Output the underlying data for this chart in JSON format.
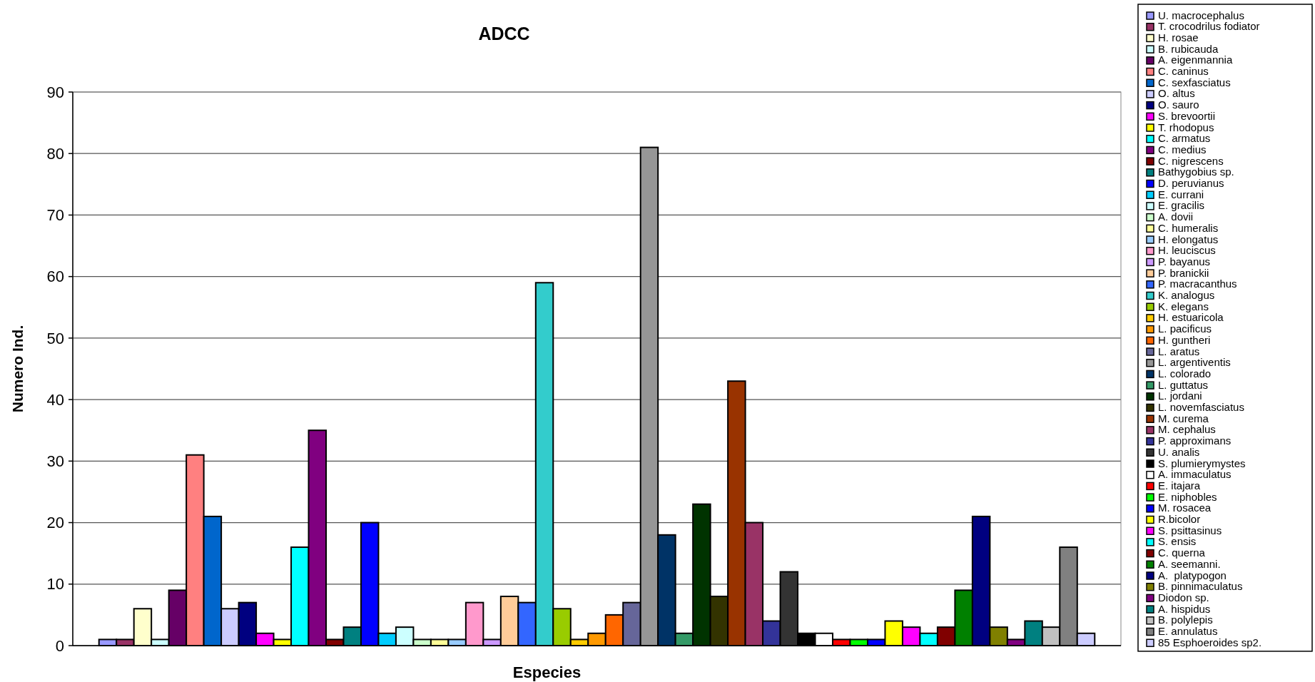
{
  "chart_data": {
    "type": "bar",
    "title": "ADCC",
    "xlabel": "Especies",
    "ylabel": "Numero Ind.",
    "categories": [
      null
    ],
    "ylim": [
      0,
      90
    ],
    "yticks": [
      0,
      10,
      20,
      30,
      40,
      50,
      60,
      70,
      80,
      90
    ],
    "grid": "y",
    "legend": "right",
    "series": [
      {
        "name": "U. macrocephalus",
        "color": "#9999ff",
        "values": [
          1
        ]
      },
      {
        "name": "T. crocodrilus fodiator",
        "color": "#993366",
        "values": [
          1
        ]
      },
      {
        "name": "H. rosae",
        "color": "#ffffcc",
        "values": [
          6
        ]
      },
      {
        "name": "B. rubicauda",
        "color": "#ccffff",
        "values": [
          1
        ]
      },
      {
        "name": "A. eigenmannia",
        "color": "#660066",
        "values": [
          9
        ]
      },
      {
        "name": "C. caninus",
        "color": "#ff8080",
        "values": [
          31
        ]
      },
      {
        "name": "C. sexfasciatus",
        "color": "#0066cc",
        "values": [
          21
        ]
      },
      {
        "name": "O. altus",
        "color": "#ccccff",
        "values": [
          6
        ]
      },
      {
        "name": "O. sauro",
        "color": "#000080",
        "values": [
          7
        ]
      },
      {
        "name": "S. brevoortii",
        "color": "#ff00ff",
        "values": [
          2
        ]
      },
      {
        "name": "T. rhodopus",
        "color": "#ffff00",
        "values": [
          1
        ]
      },
      {
        "name": "C. armatus",
        "color": "#00ffff",
        "values": [
          16
        ]
      },
      {
        "name": "C. medius",
        "color": "#800080",
        "values": [
          35
        ]
      },
      {
        "name": "C. nigrescens",
        "color": "#800000",
        "values": [
          1
        ]
      },
      {
        "name": "Bathygobius sp.",
        "color": "#008080",
        "values": [
          3
        ]
      },
      {
        "name": "D. peruvianus",
        "color": "#0000ff",
        "values": [
          20
        ]
      },
      {
        "name": "E. currani",
        "color": "#00ccff",
        "values": [
          2
        ]
      },
      {
        "name": "E. gracilis",
        "color": "#ccffff",
        "values": [
          3
        ]
      },
      {
        "name": "A. dovii",
        "color": "#ccffcc",
        "values": [
          1
        ]
      },
      {
        "name": "C. humeralis",
        "color": "#ffff99",
        "values": [
          1
        ]
      },
      {
        "name": "H. elongatus",
        "color": "#99ccff",
        "values": [
          1
        ]
      },
      {
        "name": "H. leuciscus",
        "color": "#ff99cc",
        "values": [
          7
        ]
      },
      {
        "name": "P. bayanus",
        "color": "#cc99ff",
        "values": [
          1
        ]
      },
      {
        "name": "P. branickii",
        "color": "#ffcc99",
        "values": [
          8
        ]
      },
      {
        "name": "P. macracanthus",
        "color": "#3366ff",
        "values": [
          7
        ]
      },
      {
        "name": "K. analogus",
        "color": "#33cccc",
        "values": [
          59
        ]
      },
      {
        "name": "K. elegans",
        "color": "#99cc00",
        "values": [
          6
        ]
      },
      {
        "name": "H. estuaricola",
        "color": "#ffcc00",
        "values": [
          1
        ]
      },
      {
        "name": "L. pacificus",
        "color": "#ff9900",
        "values": [
          2
        ]
      },
      {
        "name": "H. guntheri",
        "color": "#ff6600",
        "values": [
          5
        ]
      },
      {
        "name": "L. aratus",
        "color": "#666699",
        "values": [
          7
        ]
      },
      {
        "name": "L. argentiventis",
        "color": "#969696",
        "values": [
          81
        ]
      },
      {
        "name": "L. colorado",
        "color": "#003366",
        "values": [
          18
        ]
      },
      {
        "name": "L. guttatus",
        "color": "#339966",
        "values": [
          2
        ]
      },
      {
        "name": "L. jordani",
        "color": "#003300",
        "values": [
          23
        ]
      },
      {
        "name": "L. novemfasciatus",
        "color": "#333300",
        "values": [
          8
        ]
      },
      {
        "name": "M. curema",
        "color": "#993300",
        "values": [
          43
        ]
      },
      {
        "name": "M. cephalus",
        "color": "#993366",
        "values": [
          20
        ]
      },
      {
        "name": "P. approximans",
        "color": "#333399",
        "values": [
          4
        ]
      },
      {
        "name": "U. analis",
        "color": "#333333",
        "values": [
          12
        ]
      },
      {
        "name": "S. plumierymystes",
        "color": "#000000",
        "values": [
          2
        ]
      },
      {
        "name": "A. immaculatus",
        "color": "#ffffff",
        "values": [
          2
        ]
      },
      {
        "name": "E. itajara",
        "color": "#ff0000",
        "values": [
          1
        ]
      },
      {
        "name": "E. niphobles",
        "color": "#00ff00",
        "values": [
          1
        ]
      },
      {
        "name": "M. rosacea",
        "color": "#0000ff",
        "values": [
          1
        ]
      },
      {
        "name": "R.bicolor",
        "color": "#ffff00",
        "values": [
          4
        ]
      },
      {
        "name": "S. psittasinus",
        "color": "#ff00ff",
        "values": [
          3
        ]
      },
      {
        "name": "S. ensis",
        "color": "#00ffff",
        "values": [
          2
        ]
      },
      {
        "name": "C. querna",
        "color": "#800000",
        "values": [
          3
        ]
      },
      {
        "name": "A. seemanni.",
        "color": "#008000",
        "values": [
          9
        ]
      },
      {
        "name": "A.  platypogon",
        "color": "#000080",
        "values": [
          21
        ]
      },
      {
        "name": "B. pinnimaculatus",
        "color": "#808000",
        "values": [
          3
        ]
      },
      {
        "name": "Diodon sp.",
        "color": "#800080",
        "values": [
          1
        ]
      },
      {
        "name": "A. hispidus",
        "color": "#008080",
        "values": [
          4
        ]
      },
      {
        "name": "B. polylepis",
        "color": "#c0c0c0",
        "values": [
          3
        ]
      },
      {
        "name": "E. annulatus",
        "color": "#808080",
        "values": [
          16
        ]
      },
      {
        "name": "85 Esphoeroides sp2.",
        "color": "#ccccff",
        "values": [
          2
        ]
      }
    ]
  }
}
